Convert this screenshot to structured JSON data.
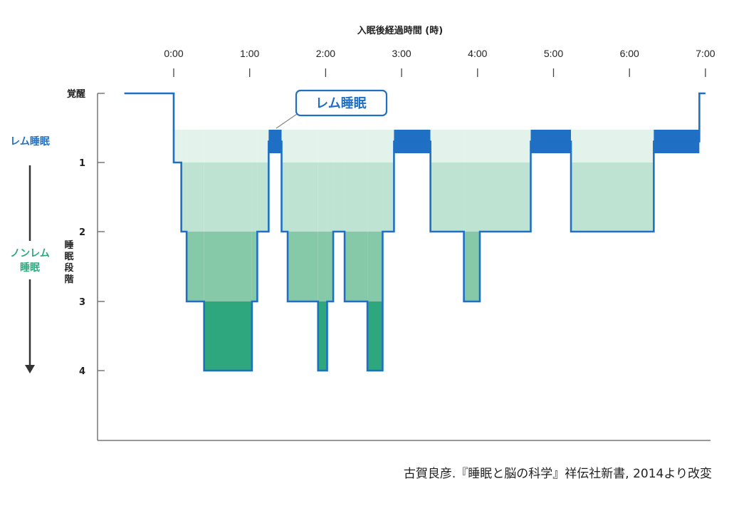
{
  "source": "古賀良彦.『睡眠と脳の科学』祥伝社新書, 2014より改変",
  "chart_data": {
    "type": "line",
    "xlabel": "入眠後経過時間 (時)",
    "x_ticks": [
      "0:00",
      "1:00",
      "2:00",
      "3:00",
      "4:00",
      "5:00",
      "6:00",
      "7:00"
    ],
    "xlim_hours": [
      -0.65,
      7.0
    ],
    "y_levels": [
      {
        "key": "wake",
        "label": "覚醒",
        "value": -1
      },
      {
        "key": "rem",
        "label": "レム睡眠",
        "value": -0.5
      },
      {
        "key": "s1",
        "label": "1",
        "value": 1
      },
      {
        "key": "s2",
        "label": "2",
        "value": 2
      },
      {
        "key": "s3",
        "label": "3",
        "value": 3
      },
      {
        "key": "s4",
        "label": "4",
        "value": 4
      }
    ],
    "ylabel": "睡眠段階",
    "side_labels": {
      "rem": "レム睡眠",
      "nonrem_line1": "ノンレム",
      "nonrem_line2": "睡眠"
    },
    "callout": "レム睡眠",
    "colors": {
      "line": "#1f6fc4",
      "rem": "#1f6fc4",
      "s1": "#e4f2ec",
      "s2": "#bfe3d2",
      "s3": "#86c9a9",
      "s4": "#2fa77e",
      "arrow": "#333333",
      "axis": "#777777"
    },
    "hypnogram": [
      {
        "t": -0.65,
        "stage": -1
      },
      {
        "t": 0.0,
        "stage": 1
      },
      {
        "t": 0.1,
        "stage": 2
      },
      {
        "t": 0.17,
        "stage": 3
      },
      {
        "t": 0.4,
        "stage": 4
      },
      {
        "t": 1.03,
        "stage": 3
      },
      {
        "t": 1.1,
        "stage": 2
      },
      {
        "t": 1.25,
        "stage": -0.5
      },
      {
        "t": 1.42,
        "stage": 2
      },
      {
        "t": 1.5,
        "stage": 3
      },
      {
        "t": 1.9,
        "stage": 4
      },
      {
        "t": 2.02,
        "stage": 3
      },
      {
        "t": 2.1,
        "stage": 2
      },
      {
        "t": 2.25,
        "stage": 3
      },
      {
        "t": 2.55,
        "stage": 4
      },
      {
        "t": 2.75,
        "stage": 2
      },
      {
        "t": 2.9,
        "stage": -0.5
      },
      {
        "t": 3.38,
        "stage": 2
      },
      {
        "t": 3.82,
        "stage": 3
      },
      {
        "t": 4.03,
        "stage": 2
      },
      {
        "t": 4.7,
        "stage": -0.5
      },
      {
        "t": 5.23,
        "stage": 2
      },
      {
        "t": 6.32,
        "stage": -0.5
      },
      {
        "t": 6.92,
        "stage": -1
      },
      {
        "t": 7.0,
        "stage": -1
      }
    ]
  }
}
